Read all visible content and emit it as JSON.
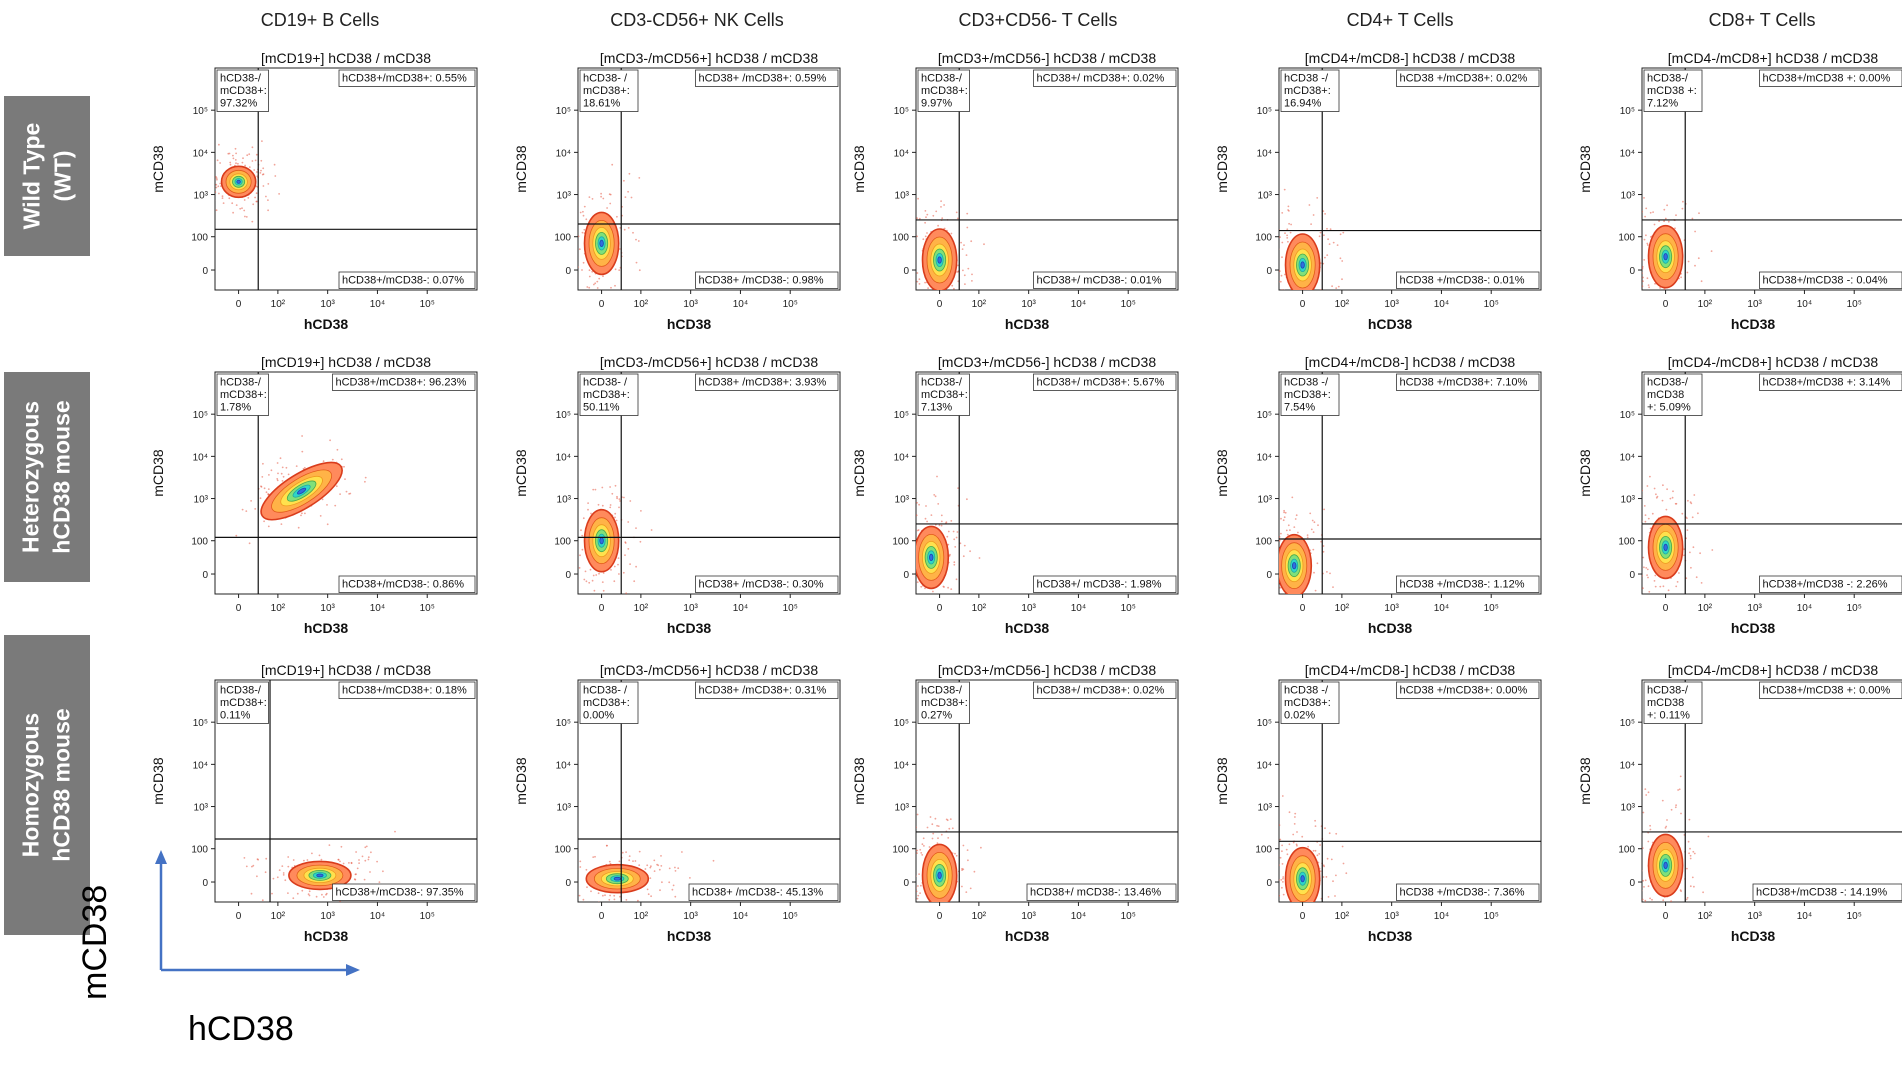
{
  "columns": [
    {
      "title": "CD19+ B Cells",
      "panel_prefix": "[mCD19+]"
    },
    {
      "title": "CD3-CD56+ NK Cells",
      "panel_prefix": "[mCD3-/mCD56+]"
    },
    {
      "title": "CD3+CD56- T Cells",
      "panel_prefix": "[mCD3+/mCD56-]"
    },
    {
      "title": "CD4+ T Cells",
      "panel_prefix": "[mCD4+/mCD8-]"
    },
    {
      "title": "CD8+ T Cells",
      "panel_prefix": "[mCD4-/mCD8+]"
    }
  ],
  "rows": [
    {
      "label_lines": [
        "Wild Type",
        "(WT)"
      ]
    },
    {
      "label_lines": [
        "Heterozygous",
        "hCD38 mouse"
      ]
    },
    {
      "label_lines": [
        "Homozygous",
        "hCD38 mouse"
      ]
    }
  ],
  "legend_axes": {
    "ylabel": "mCD38",
    "xlabel": "hCD38",
    "arrow_color": "#4472c4"
  },
  "chart_data": [
    {
      "type": "scatter",
      "row": 0,
      "col": 0,
      "title": "[mCD19+] hCD38 / mCD38",
      "xlabel": "hCD38",
      "ylabel": "mCD38",
      "quadrant_labels": [
        "hCD38-/\nmCD38+:\n97.32%",
        "hCD38+/mCD38+: 0.55%",
        "hCD38+/mCD38-: 0.07%"
      ],
      "quadrants": {
        "UL": 97.32,
        "UR": 0.55,
        "LR": 0.07
      },
      "gate": {
        "x": 50,
        "y": 150
      },
      "population_center": {
        "x": 0,
        "y": 2000
      }
    },
    {
      "type": "scatter",
      "row": 0,
      "col": 1,
      "title": "[mCD3-/mCD56+] hCD38 / mCD38",
      "xlabel": "hCD38",
      "ylabel": "mCD38",
      "quadrant_labels": [
        "hCD38- /\nmCD38+:\n18.61%",
        "hCD38+ /mCD38+: 0.59%",
        "hCD38+ /mCD38-: 0.98%"
      ],
      "quadrants": {
        "UL": 18.61,
        "UR": 0.59,
        "LR": 0.98
      },
      "gate": {
        "x": 50,
        "y": 200
      },
      "population_center": {
        "x": 0,
        "y": 80
      }
    },
    {
      "type": "scatter",
      "row": 0,
      "col": 2,
      "title": "[mCD3+/mCD56-] hCD38 / mCD38",
      "xlabel": "hCD38",
      "ylabel": "mCD38",
      "quadrant_labels": [
        "hCD38-/\nmCD38+:\n9.97%",
        "hCD38+/ mCD38+: 0.02%",
        "hCD38+/ mCD38-: 0.01%"
      ],
      "quadrants": {
        "UL": 9.97,
        "UR": 0.02,
        "LR": 0.01
      },
      "gate": {
        "x": 50,
        "y": 250
      },
      "population_center": {
        "x": 0,
        "y": 30
      }
    },
    {
      "type": "scatter",
      "row": 0,
      "col": 3,
      "title": "[mCD4+/mCD8-] hCD38 / mCD38",
      "xlabel": "hCD38",
      "ylabel": "mCD38",
      "quadrant_labels": [
        "hCD38 -/\nmCD38+:\n16.94%",
        "hCD38 +/mCD38+: 0.02%",
        "hCD38 +/mCD38-: 0.01%"
      ],
      "quadrants": {
        "UL": 16.94,
        "UR": 0.02,
        "LR": 0.01
      },
      "gate": {
        "x": 50,
        "y": 140
      },
      "population_center": {
        "x": 0,
        "y": 15
      }
    },
    {
      "type": "scatter",
      "row": 0,
      "col": 4,
      "title": "[mCD4-/mCD8+] hCD38 / mCD38",
      "xlabel": "hCD38",
      "ylabel": "mCD38",
      "quadrant_labels": [
        "hCD38-/\nmCD38 +:\n7.12%",
        "hCD38+/mCD38 +: 0.00%",
        "hCD38+/mCD38 -: 0.04%"
      ],
      "quadrants": {
        "UL": 7.12,
        "UR": 0.0,
        "LR": 0.04
      },
      "gate": {
        "x": 50,
        "y": 250
      },
      "population_center": {
        "x": 0,
        "y": 40
      }
    },
    {
      "type": "scatter",
      "row": 1,
      "col": 0,
      "title": "[mCD19+] hCD38 / mCD38",
      "xlabel": "hCD38",
      "ylabel": "mCD38",
      "quadrant_labels": [
        "hCD38-/\nmCD38+:\n1.78%",
        "hCD38+/mCD38+: 96.23%",
        "hCD38+/mCD38-: 0.86%"
      ],
      "quadrants": {
        "UL": 1.78,
        "UR": 96.23,
        "LR": 0.86
      },
      "gate": {
        "x": 50,
        "y": 120
      },
      "population_center": {
        "x": 300,
        "y": 1500
      }
    },
    {
      "type": "scatter",
      "row": 1,
      "col": 1,
      "title": "[mCD3-/mCD56+] hCD38 / mCD38",
      "xlabel": "hCD38",
      "ylabel": "mCD38",
      "quadrant_labels": [
        "hCD38- /\nmCD38+:\n50.11%",
        "hCD38+ /mCD38+: 3.93%",
        "hCD38+ /mCD38-: 0.30%"
      ],
      "quadrants": {
        "UL": 50.11,
        "UR": 3.93,
        "LR": 0.3
      },
      "gate": {
        "x": 50,
        "y": 120
      },
      "population_center": {
        "x": 0,
        "y": 100
      }
    },
    {
      "type": "scatter",
      "row": 1,
      "col": 2,
      "title": "[mCD3+/mCD56-] hCD38 / mCD38",
      "xlabel": "hCD38",
      "ylabel": "mCD38",
      "quadrant_labels": [
        "hCD38-/\nmCD38+:\n7.13%",
        "hCD38+/ mCD38+: 5.67%",
        "hCD38+/ mCD38-: 1.98%"
      ],
      "quadrants": {
        "UL": 7.13,
        "UR": 5.67,
        "LR": 1.98
      },
      "gate": {
        "x": 50,
        "y": 250
      },
      "population_center": {
        "x": -10,
        "y": 50
      }
    },
    {
      "type": "scatter",
      "row": 1,
      "col": 3,
      "title": "[mCD4+/mCD8-] hCD38 / mCD38",
      "xlabel": "hCD38",
      "ylabel": "mCD38",
      "quadrant_labels": [
        "hCD38 -/\nmCD38+:\n7.54%",
        "hCD38 +/mCD38+: 7.10%",
        "hCD38 +/mCD38-: 1.12%"
      ],
      "quadrants": {
        "UL": 7.54,
        "UR": 7.1,
        "LR": 1.12
      },
      "gate": {
        "x": 50,
        "y": 110
      },
      "population_center": {
        "x": -10,
        "y": 25
      }
    },
    {
      "type": "scatter",
      "row": 1,
      "col": 4,
      "title": "[mCD4-/mCD8+] hCD38 / mCD38",
      "xlabel": "hCD38",
      "ylabel": "mCD38",
      "quadrant_labels": [
        "hCD38-/\nmCD38\n+: 5.09%",
        "hCD38+/mCD38 +: 3.14%",
        "hCD38+/mCD38 -: 2.26%"
      ],
      "quadrants": {
        "UL": 5.09,
        "UR": 3.14,
        "LR": 2.26
      },
      "gate": {
        "x": 50,
        "y": 250
      },
      "population_center": {
        "x": 0,
        "y": 80
      }
    },
    {
      "type": "scatter",
      "row": 2,
      "col": 0,
      "title": "[mCD19+] hCD38 / mCD38",
      "xlabel": "hCD38",
      "ylabel": "mCD38",
      "quadrant_labels": [
        "hCD38-/\nmCD38+:\n0.11%",
        "hCD38+/mCD38+: 0.18%",
        "hCD38+/mCD38-: 97.35%"
      ],
      "quadrants": {
        "UL": 0.11,
        "UR": 0.18,
        "LR": 97.35
      },
      "gate": {
        "x": 80,
        "y": 170
      },
      "population_center": {
        "x": 700,
        "y": 20
      }
    },
    {
      "type": "scatter",
      "row": 2,
      "col": 1,
      "title": "[mCD3-/mCD56+] hCD38 / mCD38",
      "xlabel": "hCD38",
      "ylabel": "mCD38",
      "quadrant_labels": [
        "hCD38- /\nmCD38+:\n0.00%",
        "hCD38+ /mCD38+: 0.31%",
        "hCD38+ /mCD38-: 45.13%"
      ],
      "quadrants": {
        "UL": 0.0,
        "UR": 0.31,
        "LR": 45.13
      },
      "gate": {
        "x": 50,
        "y": 170
      },
      "population_center": {
        "x": 40,
        "y": 10
      }
    },
    {
      "type": "scatter",
      "row": 2,
      "col": 2,
      "title": "[mCD3+/mCD56-] hCD38 / mCD38",
      "xlabel": "hCD38",
      "ylabel": "mCD38",
      "quadrant_labels": [
        "hCD38-/\nmCD38+:\n0.27%",
        "hCD38+/ mCD38+: 0.02%",
        "hCD38+/ mCD38-: 13.46%"
      ],
      "quadrants": {
        "UL": 0.27,
        "UR": 0.02,
        "LR": 13.46
      },
      "gate": {
        "x": 50,
        "y": 250
      },
      "population_center": {
        "x": 0,
        "y": 20
      }
    },
    {
      "type": "scatter",
      "row": 2,
      "col": 3,
      "title": "[mCD4+/mCD8-] hCD38 / mCD38",
      "xlabel": "hCD38",
      "ylabel": "mCD38",
      "quadrant_labels": [
        "hCD38 -/\nmCD38+:\n0.02%",
        "hCD38 +/mCD38+: 0.00%",
        "hCD38 +/mCD38-: 7.36%"
      ],
      "quadrants": {
        "UL": 0.02,
        "UR": 0.0,
        "LR": 7.36
      },
      "gate": {
        "x": 50,
        "y": 150
      },
      "population_center": {
        "x": 0,
        "y": 10
      }
    },
    {
      "type": "scatter",
      "row": 2,
      "col": 4,
      "title": "[mCD4-/mCD8+] hCD38 / mCD38",
      "xlabel": "hCD38",
      "ylabel": "mCD38",
      "quadrant_labels": [
        "hCD38-/\nmCD38\n+: 0.11%",
        "hCD38+/mCD38 +: 0.00%",
        "hCD38+/mCD38 -: 14.19%"
      ],
      "quadrants": {
        "UL": 0.11,
        "UR": 0.0,
        "LR": 14.19
      },
      "gate": {
        "x": 50,
        "y": 250
      },
      "population_center": {
        "x": 0,
        "y": 50
      }
    }
  ],
  "axis": {
    "x_ticks": [
      "0",
      "10²",
      "10³",
      "10⁴",
      "10⁵"
    ],
    "y_ticks": [
      "10⁵",
      "10⁴",
      "10³",
      "100",
      "0"
    ],
    "scale": "biexponential",
    "grid": false
  }
}
